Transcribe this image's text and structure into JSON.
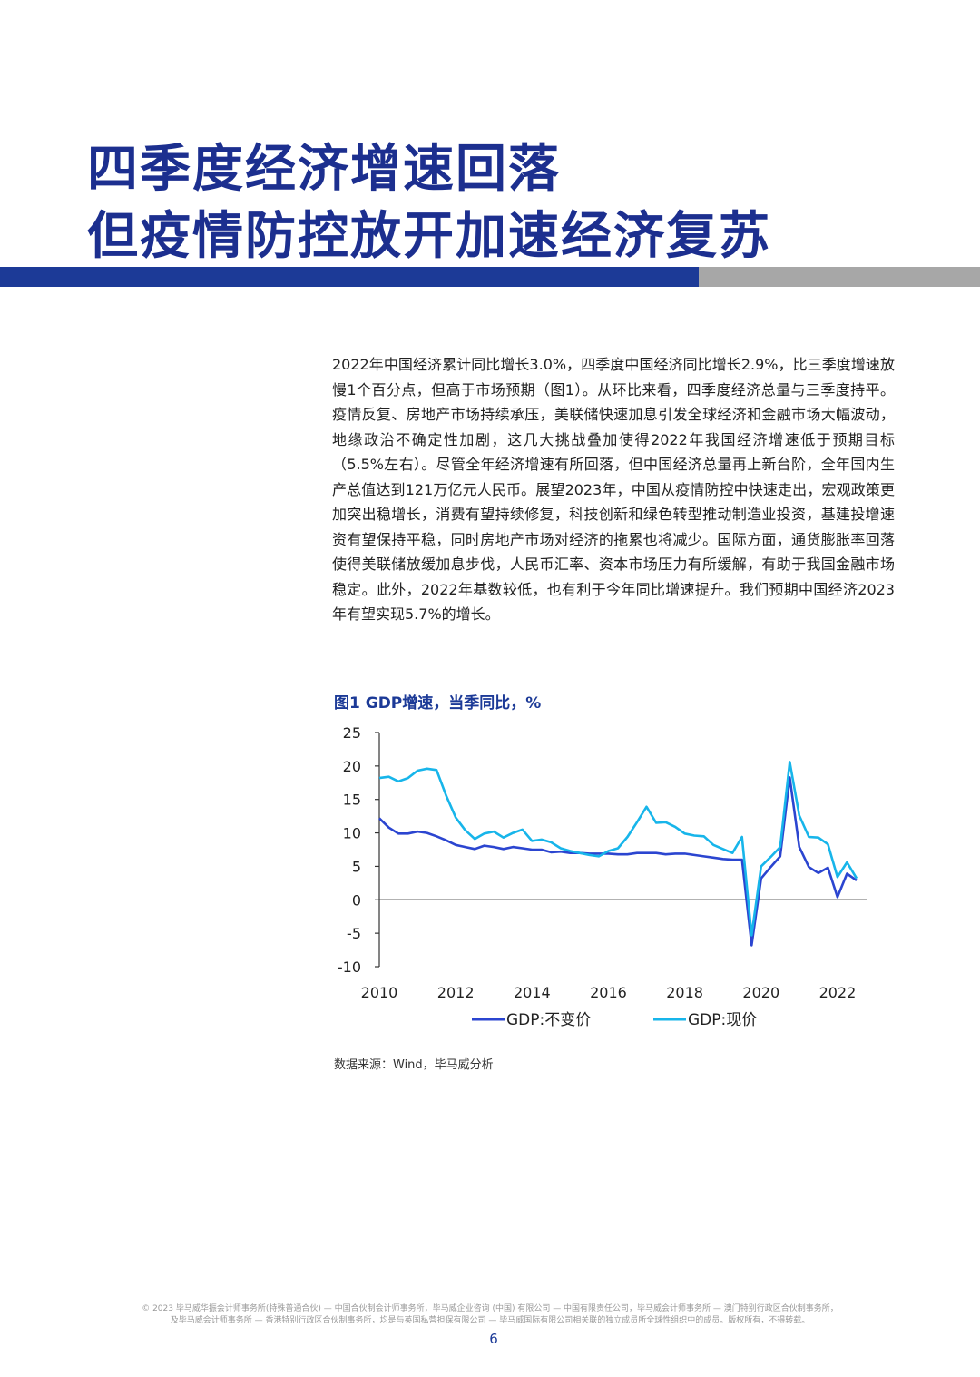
{
  "title": {
    "line1": "四季度经济增速回落",
    "line2": "但疫情防控放开加速经济复苏"
  },
  "body_text": "2022年中国经济累计同比增长3.0%，四季度中国经济同比增长2.9%，比三季度增速放慢1个百分点，但高于市场预期（图1）。从环比来看，四季度经济总量与三季度持平。疫情反复、房地产市场持续承压，美联储快速加息引发全球经济和金融市场大幅波动，地缘政治不确定性加剧，这几大挑战叠加使得2022年我国经济增速低于预期目标（5.5%左右）。尽管全年经济增速有所回落，但中国经济总量再上新台阶，全年国内生产总值达到121万亿元人民币。展望2023年，中国从疫情防控中快速走出，宏观政策更加突出稳增长，消费有望持续修复，科技创新和绿色转型推动制造业投资，基建投增速资有望保持平稳，同时房地产市场对经济的拖累也将减少。国际方面，通货膨胀率回落使得美联储放缓加息步伐，人民币汇率、资本市场压力有所缓解，有助于我国金融市场稳定。此外，2022年基数较低，也有利于今年同比增速提升。我们预期中国经济2023年有望实现5.7%的增长。",
  "figure_title": "图1  GDP增速，当季同比，%",
  "source": "数据来源：Wind，毕马威分析",
  "footer": {
    "line1": "© 2023 毕马威华振会计师事务所(特殊普通合伙) — 中国合伙制会计师事务所，毕马威企业咨询 (中国) 有限公司 — 中国有限责任公司，毕马威会计师事务所 — 澳门特别行政区合伙制事务所，",
    "line2": "及毕马威会计师事务所 — 香港特别行政区合伙制事务所，均是与英国私营担保有限公司 — 毕马威国际有限公司相关联的独立成员所全球性组织中的成员。版权所有，不得转载。"
  },
  "page_number": "6",
  "colors": {
    "title": "#1c2f8f",
    "bar_blue": "#1c3a97",
    "bar_gray": "#a7a7a7",
    "series_real": "#2b45d0",
    "series_nominal": "#17b5ea"
  },
  "chart_data": {
    "type": "line",
    "title": "图1  GDP增速，当季同比，%",
    "ylim": [
      -10,
      25
    ],
    "yticks": [
      25,
      20,
      15,
      10,
      5,
      0,
      -5,
      -10
    ],
    "xticks": [
      "2010",
      "2012",
      "2014",
      "2016",
      "2018",
      "2020",
      "2022"
    ],
    "x_start_year": 2010,
    "quarters_per_year": 4,
    "grid": false,
    "legend_position": "bottom",
    "series": [
      {
        "name": "GDP:不变价",
        "values": [
          12.2,
          10.8,
          9.9,
          9.9,
          10.2,
          10.0,
          9.5,
          8.9,
          8.2,
          7.9,
          7.6,
          8.1,
          7.9,
          7.6,
          7.9,
          7.7,
          7.5,
          7.5,
          7.1,
          7.2,
          7.0,
          7.0,
          6.9,
          6.9,
          6.9,
          6.8,
          6.8,
          7.0,
          7.0,
          7.0,
          6.8,
          6.9,
          6.9,
          6.7,
          6.5,
          6.3,
          6.1,
          6.0,
          6.0,
          -6.8,
          3.2,
          4.9,
          6.5,
          18.3,
          7.9,
          4.9,
          4.0,
          4.8,
          0.4,
          3.9,
          2.9
        ]
      },
      {
        "name": "GDP:现价",
        "values": [
          18.2,
          18.4,
          17.7,
          18.2,
          19.3,
          19.6,
          19.4,
          15.6,
          12.3,
          10.4,
          9.1,
          9.9,
          10.2,
          9.3,
          10.0,
          10.5,
          8.8,
          9.0,
          8.6,
          7.7,
          7.3,
          7.0,
          6.7,
          6.5,
          7.3,
          7.7,
          9.4,
          11.6,
          13.9,
          11.5,
          11.6,
          10.9,
          9.9,
          9.6,
          9.5,
          8.2,
          7.6,
          7.0,
          9.4,
          -5.3,
          5.0,
          6.4,
          7.9,
          20.6,
          12.6,
          9.4,
          9.3,
          8.3,
          3.4,
          5.6,
          3.2
        ]
      }
    ]
  }
}
